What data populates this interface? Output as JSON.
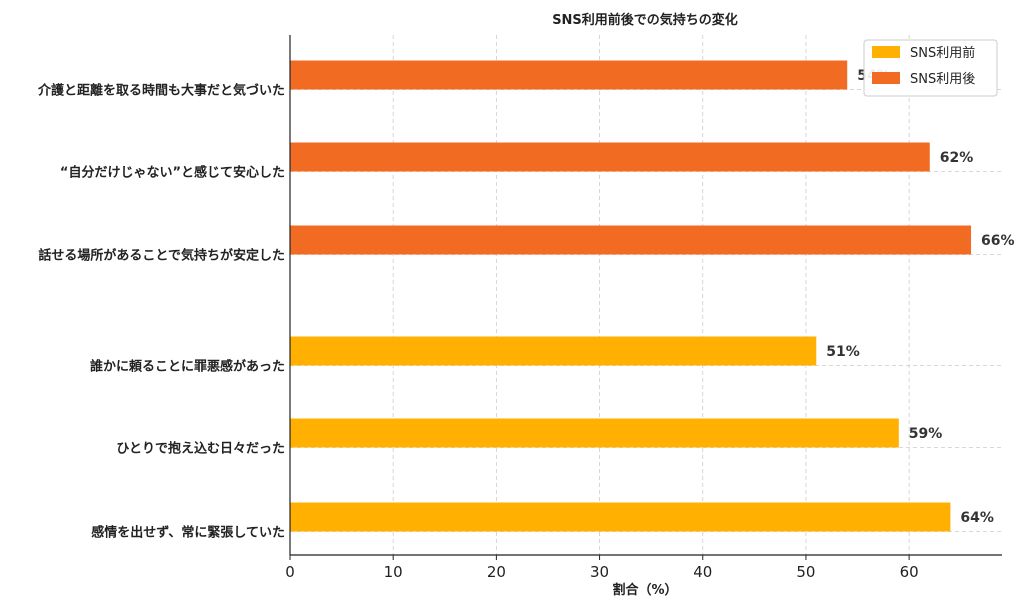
{
  "chart_data": {
    "type": "bar",
    "orientation": "horizontal",
    "title": "SNS利用前後での気持ちの変化",
    "xlabel": "割合（%）",
    "ylabel": "",
    "xlim": [
      0,
      69
    ],
    "xticks": [
      0,
      10,
      20,
      30,
      40,
      50,
      60
    ],
    "grid": true,
    "legend_position": "top-right",
    "categories": [
      "介護と距離を取る時間も大事だと気づいた",
      "“自分だけじゃない”と感じて安心した",
      "話せる場所があることで気持ちが安定した",
      "誰かに頼ることに罪悪感があった",
      "ひとりで抱え込む日々だった",
      "感情を出せず、常に緊張していた"
    ],
    "series": [
      {
        "name": "SNS利用前",
        "color": "#FFB000",
        "values": [
          null,
          null,
          null,
          51,
          59,
          64
        ]
      },
      {
        "name": "SNS利用後",
        "color": "#F26B22",
        "values": [
          54,
          62,
          66,
          null,
          null,
          null
        ]
      }
    ],
    "data_labels": [
      "54%",
      "62%",
      "66%",
      "51%",
      "59%",
      "64%"
    ]
  }
}
